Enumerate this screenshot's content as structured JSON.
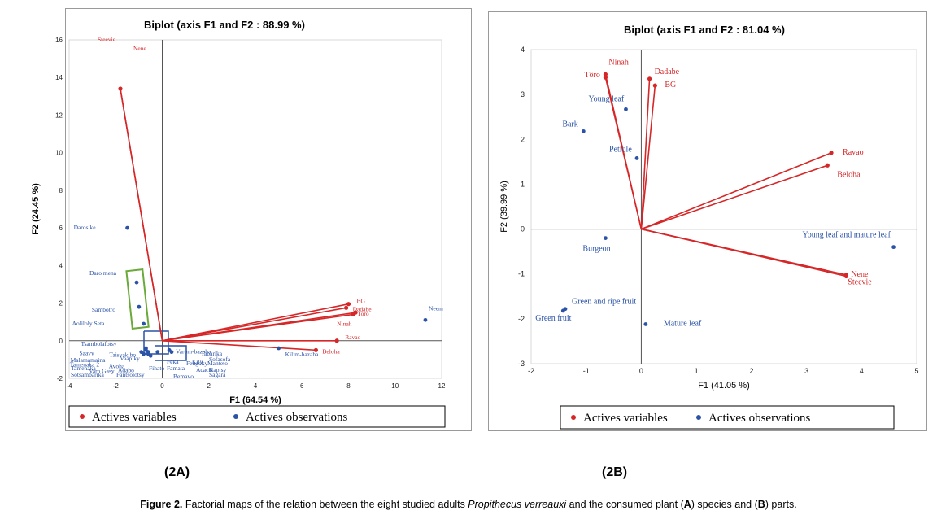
{
  "panels": [
    {
      "id": "A",
      "label": "(2A)",
      "colors": {
        "variables": "#d62728",
        "observations": "#2a52a6",
        "group_box_green": "#6aaa3a",
        "group_box_blue": "#2a52a6"
      },
      "legend": {
        "variables": "Actives variables",
        "observations": "Actives observations"
      }
    },
    {
      "id": "B",
      "label": "(2B)",
      "colors": {
        "variables": "#d62728",
        "observations": "#2a52a6"
      },
      "legend": {
        "variables": "Actives variables",
        "observations": "Actives observations"
      }
    }
  ],
  "chart_data": [
    {
      "type": "scatter",
      "title": "Biplot (axis F1 and F2 : 88.99 %)",
      "xlabel": "F1 (64.54 %)",
      "ylabel": "F2 (24.45 %)",
      "xlim": [
        -4,
        12
      ],
      "ylim": [
        -2,
        16
      ],
      "xticks": [
        -4,
        -2,
        0,
        2,
        4,
        6,
        8,
        10,
        12
      ],
      "yticks": [
        -2,
        0,
        2,
        4,
        6,
        8,
        10,
        12,
        14,
        16
      ],
      "legend_position": "bottom",
      "grid": false,
      "variables": [
        {
          "name": "Steevie",
          "x": -1.8,
          "y": 13.4
        },
        {
          "name": "Nene",
          "x": -1.8,
          "y": 13.4
        },
        {
          "name": "BG",
          "x": 8.0,
          "y": 1.95
        },
        {
          "name": "Dadabe",
          "x": 7.9,
          "y": 1.75
        },
        {
          "name": "Tôro",
          "x": 8.3,
          "y": 1.5
        },
        {
          "name": "Ninah",
          "x": 8.2,
          "y": 1.4
        },
        {
          "name": "Ravao",
          "x": 7.5,
          "y": 0.0
        },
        {
          "name": "Beloha",
          "x": 6.6,
          "y": -0.5
        }
      ],
      "observations": [
        {
          "name": "Neem",
          "x": 11.3,
          "y": 1.1
        },
        {
          "name": "Darosike",
          "x": -1.5,
          "y": 6.0
        },
        {
          "name": "Daro mena",
          "x": -1.1,
          "y": 3.1
        },
        {
          "name": "Sambotro",
          "x": -1.0,
          "y": 1.8
        },
        {
          "name": "Aoliloly Seta",
          "x": -0.8,
          "y": 0.9
        },
        {
          "name": "Kilim-bazaha",
          "x": 5.0,
          "y": -0.4
        },
        {
          "name": "Varom-bazaha",
          "x": 0.3,
          "y": -0.5
        },
        {
          "name": "Tsambolafotsy",
          "x": -0.7,
          "y": -0.4
        },
        {
          "name": "Saavy",
          "x": -0.7,
          "y": -0.5
        },
        {
          "name": "Taisvakibo",
          "x": -0.6,
          "y": -0.6
        },
        {
          "name": "Malamamaina",
          "x": -0.8,
          "y": -0.7
        },
        {
          "name": "Tamenaka 2",
          "x": -0.9,
          "y": -0.6
        },
        {
          "name": "Vaapiky",
          "x": -0.6,
          "y": -0.7
        },
        {
          "name": "Varo Gasy",
          "x": -0.5,
          "y": -0.8
        },
        {
          "name": "Avoha",
          "x": -0.2,
          "y": -0.6
        },
        {
          "name": "Adabo",
          "x": 0.4,
          "y": -0.6
        }
      ],
      "cluster_labels": [
        "Tamenaka",
        "Sotsambarika",
        "Fantsolotsy",
        "Feka",
        "Fihato",
        "Famata",
        "Kily",
        "Tabarika",
        "Fengoky",
        "Manteto",
        "Sofasofa",
        "Acacia",
        "Kapisy",
        "Bemavo",
        "Sagara"
      ]
    },
    {
      "type": "scatter",
      "title": "Biplot (axis F1 and F2 : 81.04 %)",
      "xlabel": "F1 (41.05 %)",
      "ylabel": "F2 (39.99 %)",
      "xlim": [
        -2,
        5
      ],
      "ylim": [
        -3,
        4
      ],
      "xticks": [
        -2,
        -1,
        0,
        1,
        2,
        3,
        4,
        5
      ],
      "yticks": [
        -3,
        -2,
        -1,
        0,
        1,
        2,
        3,
        4
      ],
      "legend_position": "bottom",
      "grid": false,
      "variables": [
        {
          "name": "Ninah",
          "x": -0.65,
          "y": 3.45
        },
        {
          "name": "Tôro",
          "x": -0.65,
          "y": 3.38
        },
        {
          "name": "Dadabe",
          "x": 0.15,
          "y": 3.35
        },
        {
          "name": "BG",
          "x": 0.25,
          "y": 3.2
        },
        {
          "name": "Ravao",
          "x": 3.45,
          "y": 1.7
        },
        {
          "name": "Beloha",
          "x": 3.38,
          "y": 1.42
        },
        {
          "name": "Nene",
          "x": 3.72,
          "y": -1.02
        },
        {
          "name": "Steevie",
          "x": 3.72,
          "y": -1.05
        }
      ],
      "observations": [
        {
          "name": "Young leaf",
          "x": -0.28,
          "y": 2.67
        },
        {
          "name": "Bark",
          "x": -1.05,
          "y": 2.18
        },
        {
          "name": "Petiole",
          "x": -0.08,
          "y": 1.58
        },
        {
          "name": "Young leaf and mature leaf",
          "x": 4.58,
          "y": -0.4
        },
        {
          "name": "Burgeon",
          "x": -0.65,
          "y": -0.2
        },
        {
          "name": "Green and ripe fruit",
          "x": -1.38,
          "y": -1.78
        },
        {
          "name": "Green fruit",
          "x": -1.42,
          "y": -1.82
        },
        {
          "name": "Mature leaf",
          "x": 0.08,
          "y": -2.12
        }
      ]
    }
  ],
  "caption": {
    "prefix": "Figure 2.",
    "text1": " Factorial maps of the relation between the eight studied adults ",
    "species": "Propithecus verreauxi",
    "text2": " and the consumed plant (",
    "a": "A",
    "text3": ") species and (",
    "b": "B",
    "text4": ") parts."
  }
}
